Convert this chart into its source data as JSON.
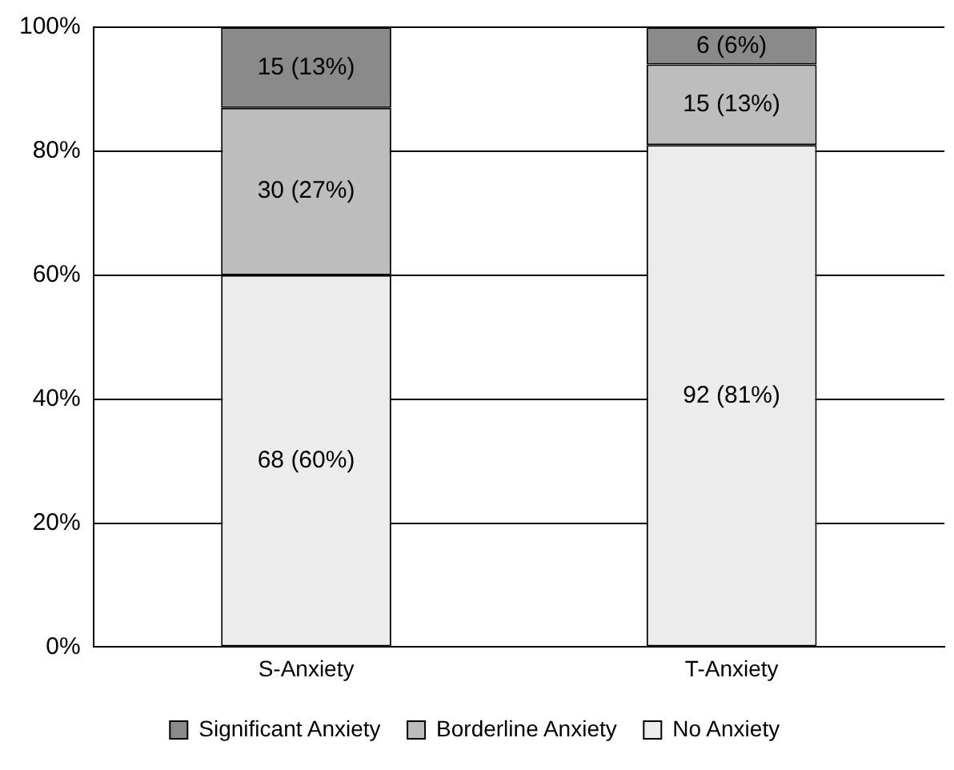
{
  "chart_data": {
    "type": "bar",
    "stacked": true,
    "categories": [
      "S-Anxiety",
      "T-Anxiety"
    ],
    "series": [
      {
        "name": "No Anxiety",
        "color": "#ececec",
        "values": [
          60,
          81
        ],
        "value_labels": [
          "68 (60%)",
          "92 (81%)"
        ]
      },
      {
        "name": "Borderline Anxiety",
        "color": "#bdbdbd",
        "values": [
          27,
          13
        ],
        "value_labels": [
          "30 (27%)",
          "15 (13%)"
        ]
      },
      {
        "name": "Significant Anxiety",
        "color": "#8a8a8a",
        "values": [
          13,
          6
        ],
        "value_labels": [
          "15 (13%)",
          "6 (6%)"
        ]
      }
    ],
    "ylim": [
      0,
      100
    ],
    "yticks": [
      {
        "value": 0,
        "label": "0%"
      },
      {
        "value": 20,
        "label": "20%"
      },
      {
        "value": 40,
        "label": "40%"
      },
      {
        "value": 60,
        "label": "60%"
      },
      {
        "value": 80,
        "label": "80%"
      },
      {
        "value": 100,
        "label": "100%"
      }
    ],
    "grid": "y",
    "legend": "bottom"
  }
}
